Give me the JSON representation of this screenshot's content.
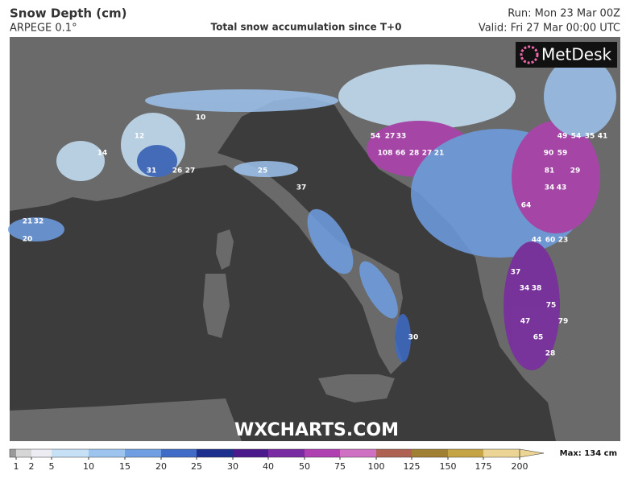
{
  "header": {
    "title": "Snow Depth (cm)",
    "model": "ARPEGE 0.1°",
    "subtitle": "Total snow accumulation since T+0",
    "run": "Run: Mon 23 Mar 00Z",
    "valid": "Valid: Fri 27 Mar 00:00 UTC"
  },
  "map": {
    "labels": [
      "108",
      "54",
      "27",
      "33",
      "66",
      "28",
      "27",
      "21",
      "90",
      "59",
      "49",
      "54",
      "35",
      "41",
      "81",
      "29",
      "34",
      "43",
      "64",
      "60",
      "44",
      "23",
      "37",
      "38",
      "34",
      "75",
      "47",
      "79",
      "65",
      "28",
      "30",
      "31",
      "26",
      "27",
      "25",
      "37",
      "32",
      "21",
      "20",
      "14",
      "12",
      "10"
    ]
  },
  "branding": {
    "logo": "MetDesk",
    "watermark": "WXCHARTS.COM"
  },
  "legend": {
    "ticks": [
      1,
      2,
      5,
      10,
      15,
      20,
      25,
      30,
      40,
      50,
      75,
      100,
      125,
      150,
      175,
      200
    ],
    "colors": [
      "#9a9a9a",
      "#d6d6d6",
      "#ececf2",
      "#c6e0f6",
      "#9dc4ee",
      "#6f9ee2",
      "#3e6cc6",
      "#1d2f8e",
      "#4a1a8c",
      "#7a2aa2",
      "#b040b2",
      "#d070c2",
      "#b06252",
      "#a08032",
      "#c4a444",
      "#ecd494"
    ],
    "max": "Max: 134 cm"
  }
}
